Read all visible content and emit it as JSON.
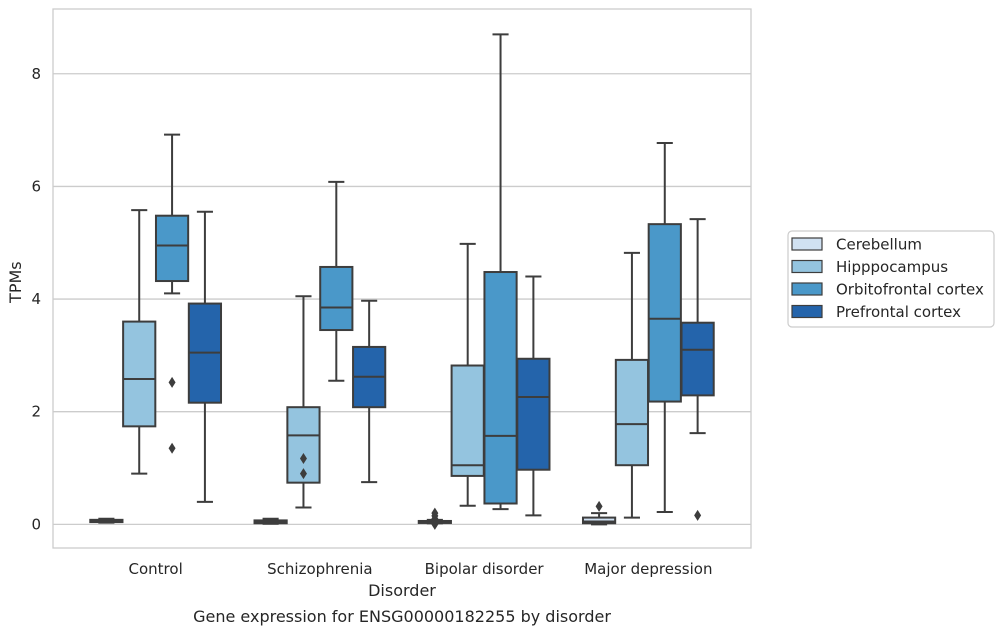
{
  "caption": "Gene expression for ENSG00000182255 by disorder",
  "chart_data": {
    "type": "box",
    "xlabel": "Disorder",
    "ylabel": "TPMs",
    "ylim": [
      -0.42,
      9.15
    ],
    "yticks": [
      0,
      2,
      4,
      6,
      8
    ],
    "grid": "horizontal",
    "legend_position": "right",
    "categories": [
      "Control",
      "Schizophrenia",
      "Bipolar disorder",
      "Major depression"
    ],
    "series": [
      {
        "name": "Cerebellum",
        "color": "#d0e1f2",
        "boxes": [
          {
            "whisker_low": 0.03,
            "q1": 0.04,
            "median": 0.06,
            "q3": 0.08,
            "whisker_high": 0.1,
            "outliers": []
          },
          {
            "whisker_low": 0.01,
            "q1": 0.02,
            "median": 0.05,
            "q3": 0.07,
            "whisker_high": 0.1,
            "outliers": []
          },
          {
            "whisker_low": 0.02,
            "q1": 0.03,
            "median": 0.04,
            "q3": 0.06,
            "whisker_high": 0.08,
            "outliers": [
              0.0,
              0.05,
              0.1,
              0.15,
              0.2
            ]
          },
          {
            "whisker_low": 0.0,
            "q1": 0.02,
            "median": 0.05,
            "q3": 0.12,
            "whisker_high": 0.2,
            "outliers": [
              0.32
            ]
          }
        ]
      },
      {
        "name": "Hipppocampus",
        "color": "#94c4df",
        "boxes": [
          {
            "whisker_low": 0.9,
            "q1": 1.74,
            "median": 2.58,
            "q3": 3.6,
            "whisker_high": 5.58,
            "outliers": []
          },
          {
            "whisker_low": 0.3,
            "q1": 0.74,
            "median": 1.58,
            "q3": 2.08,
            "whisker_high": 4.05,
            "outliers": [
              0.9,
              1.17
            ]
          },
          {
            "whisker_low": 0.33,
            "q1": 0.86,
            "median": 1.05,
            "q3": 2.82,
            "whisker_high": 4.98,
            "outliers": []
          },
          {
            "whisker_low": 0.12,
            "q1": 1.05,
            "median": 1.78,
            "q3": 2.92,
            "whisker_high": 4.82,
            "outliers": []
          }
        ]
      },
      {
        "name": "Orbitofrontal cortex",
        "color": "#4a98c9",
        "boxes": [
          {
            "whisker_low": 4.1,
            "q1": 4.32,
            "median": 4.95,
            "q3": 5.48,
            "whisker_high": 6.92,
            "outliers": [
              1.35,
              2.52
            ]
          },
          {
            "whisker_low": 2.55,
            "q1": 3.45,
            "median": 3.85,
            "q3": 4.57,
            "whisker_high": 6.08,
            "outliers": []
          },
          {
            "whisker_low": 0.27,
            "q1": 0.37,
            "median": 1.57,
            "q3": 4.48,
            "whisker_high": 8.7,
            "outliers": []
          },
          {
            "whisker_low": 0.22,
            "q1": 2.18,
            "median": 3.65,
            "q3": 5.33,
            "whisker_high": 6.77,
            "outliers": []
          }
        ]
      },
      {
        "name": "Prefrontal cortex",
        "color": "#2464ab",
        "boxes": [
          {
            "whisker_low": 0.4,
            "q1": 2.16,
            "median": 3.05,
            "q3": 3.92,
            "whisker_high": 5.55,
            "outliers": []
          },
          {
            "whisker_low": 0.75,
            "q1": 2.08,
            "median": 2.62,
            "q3": 3.15,
            "whisker_high": 3.97,
            "outliers": []
          },
          {
            "whisker_low": 0.16,
            "q1": 0.97,
            "median": 2.26,
            "q3": 2.94,
            "whisker_high": 4.4,
            "outliers": []
          },
          {
            "whisker_low": 1.62,
            "q1": 2.29,
            "median": 3.1,
            "q3": 3.58,
            "whisker_high": 5.42,
            "outliers": [
              0.16
            ]
          }
        ]
      }
    ]
  }
}
